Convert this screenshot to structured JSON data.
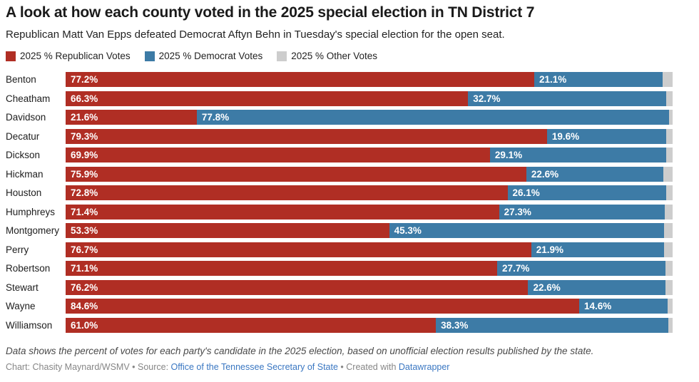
{
  "header": {
    "title": "A look at how each county voted in the 2025 special election in TN District 7",
    "subtitle": "Republican Matt Van Epps defeated Democrat Aftyn Behn in Tuesday's special election for the open seat."
  },
  "legend": {
    "items": [
      {
        "key": "republican",
        "label": "2025 % Republican Votes",
        "color": "#b02e24"
      },
      {
        "key": "democrat",
        "label": "2025 % Democrat Votes",
        "color": "#3d7ba6"
      },
      {
        "key": "other",
        "label": "2025 % Other Votes",
        "color": "#cdcdcd"
      }
    ]
  },
  "chart_data": {
    "type": "bar",
    "orientation": "horizontal",
    "stacked": true,
    "unit": "%",
    "xlim": [
      0,
      100
    ],
    "legend_position": "top",
    "value_label_decimals": 1,
    "categories": [
      "Benton",
      "Cheatham",
      "Davidson",
      "Decatur",
      "Dickson",
      "Hickman",
      "Houston",
      "Humphreys",
      "Montgomery",
      "Perry",
      "Robertson",
      "Stewart",
      "Wayne",
      "Williamson"
    ],
    "series": [
      {
        "key": "republican",
        "name": "2025 % Republican Votes",
        "color": "#b02e24",
        "show_labels": true,
        "values": [
          77.2,
          66.3,
          21.6,
          79.3,
          69.9,
          75.9,
          72.8,
          71.4,
          53.3,
          76.7,
          71.1,
          76.2,
          84.6,
          61.0
        ]
      },
      {
        "key": "democrat",
        "name": "2025 % Democrat Votes",
        "color": "#3d7ba6",
        "show_labels": true,
        "values": [
          21.1,
          32.7,
          77.8,
          19.6,
          29.1,
          22.6,
          26.1,
          27.3,
          45.3,
          21.9,
          27.7,
          22.6,
          14.6,
          38.3
        ]
      },
      {
        "key": "other",
        "name": "2025 % Other Votes",
        "color": "#cdcdcd",
        "show_labels": false,
        "values": [
          1.7,
          1.0,
          0.6,
          1.1,
          1.0,
          1.5,
          1.1,
          1.3,
          1.4,
          1.4,
          1.2,
          1.2,
          0.8,
          0.7
        ]
      }
    ]
  },
  "footer": {
    "note": "Data shows the percent of votes for each party's candidate in the 2025 election, based on unofficial election results published by the state.",
    "byline_prefix": "Chart: Chasity Maynard/WSMV • Source: ",
    "source_link_label": "Office of the Tennessee Secretary of State",
    "byline_middle": " • Created with ",
    "tool_link_label": "Datawrapper",
    "link_color": "#3a77c2"
  }
}
